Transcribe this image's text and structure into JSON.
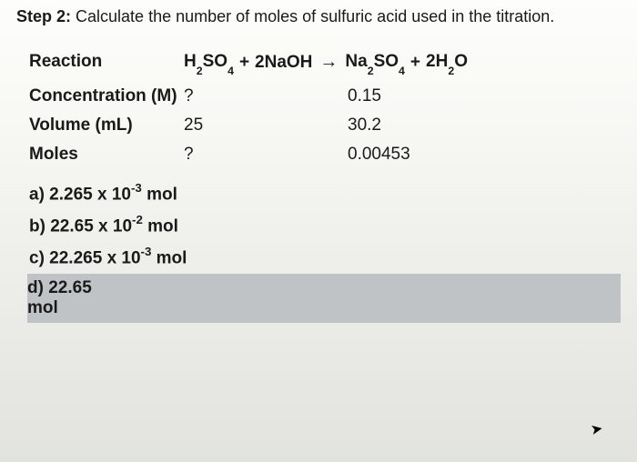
{
  "step": {
    "label": "Step 2:",
    "text": "Calculate the number of moles of sulfuric acid used in the titration."
  },
  "rows": {
    "reaction_label": "Reaction",
    "conc_label": "Concentration (M)",
    "vol_label": "Volume (mL)",
    "moles_label": "Moles"
  },
  "reaction": {
    "r1": "H",
    "r1s": "2",
    "r1b": "SO",
    "r1bs": "4",
    "plus1": "+",
    "r2c": "2NaOH",
    "arrow": "→",
    "p1": "Na",
    "p1s": "2",
    "p1b": "SO",
    "p1bs": "4",
    "plus2": "+",
    "p2c": "2H",
    "p2s": "2",
    "p2b": "O"
  },
  "values": {
    "conc_a": "?",
    "conc_b": "0.15",
    "vol_a": "25",
    "vol_b": "30.2",
    "moles_a": "?",
    "moles_b": "0.00453"
  },
  "options": {
    "a_pre": "a)  2.265 x 10",
    "a_exp": "-3",
    "a_post": " mol",
    "b_pre": "b)  22.65 x 10",
    "b_exp": "-2",
    "b_post": " mol",
    "c_pre": "c)  22.265 x 10",
    "c_exp": "-3",
    "c_post": " mol",
    "d": "d)  22.65 mol"
  },
  "colors": {
    "text": "#1a1a1a",
    "highlight": "#bfc3c6"
  }
}
